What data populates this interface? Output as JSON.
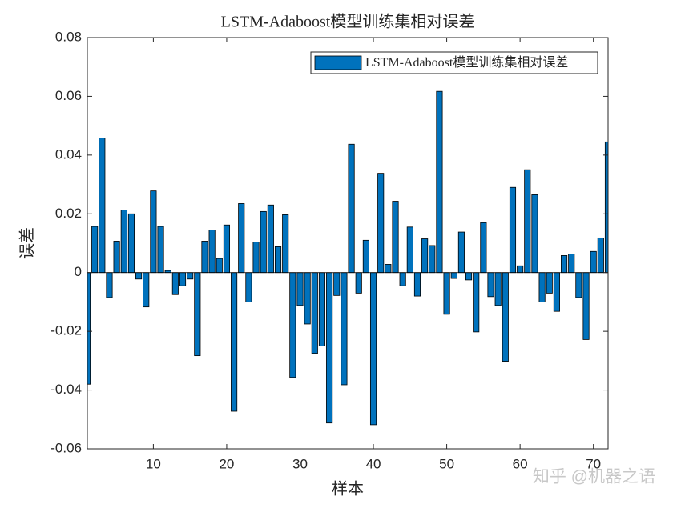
{
  "chart_data": {
    "type": "bar",
    "title": "LSTM-Adaboost模型训练集相对误差",
    "x_label": "样本",
    "y_label": "误差",
    "x": [
      1,
      2,
      3,
      4,
      5,
      6,
      7,
      8,
      9,
      10,
      11,
      12,
      13,
      14,
      15,
      16,
      17,
      18,
      19,
      20,
      21,
      22,
      23,
      24,
      25,
      26,
      27,
      28,
      29,
      30,
      31,
      32,
      33,
      34,
      35,
      36,
      37,
      38,
      39,
      40,
      41,
      42,
      43,
      44,
      45,
      46,
      47,
      48,
      49,
      50,
      51,
      52,
      53,
      54,
      55,
      56,
      57,
      58,
      59,
      60,
      61,
      62,
      63,
      64,
      65,
      66,
      67,
      68,
      69,
      70,
      71,
      72
    ],
    "series": [
      {
        "name": "LSTM-Adaboost模型训练集相对误差",
        "color": "#0072bd",
        "values": [
          -0.038,
          0.0157,
          0.0458,
          -0.0085,
          0.0107,
          0.0213,
          0.02,
          -0.0022,
          -0.0117,
          0.0278,
          0.0157,
          0.0007,
          -0.0075,
          -0.0045,
          -0.0022,
          -0.0283,
          0.0107,
          0.0145,
          0.0048,
          0.0162,
          -0.0472,
          0.0235,
          -0.01,
          0.0104,
          0.0208,
          0.023,
          0.0088,
          0.0197,
          -0.0357,
          -0.0112,
          -0.0175,
          -0.0275,
          -0.025,
          -0.0512,
          -0.0078,
          -0.0382,
          0.0437,
          -0.007,
          0.011,
          -0.0518,
          0.0338,
          0.0028,
          0.0243,
          -0.0045,
          0.0155,
          -0.008,
          0.0115,
          0.0092,
          0.0617,
          -0.0142,
          -0.002,
          0.0138,
          -0.0025,
          -0.0202,
          0.017,
          -0.0082,
          -0.0112,
          -0.0302,
          0.029,
          0.0023,
          0.035,
          0.0265,
          -0.01,
          -0.007,
          -0.0132,
          0.0058,
          0.0063,
          -0.0085,
          -0.0228,
          0.0072,
          0.0118,
          0.0445
        ]
      }
    ],
    "xlim": [
      1,
      72
    ],
    "xticks": [
      10,
      20,
      30,
      40,
      50,
      60,
      70
    ],
    "ylim": [
      -0.06,
      0.08
    ],
    "yticks": [
      -0.06,
      -0.04,
      -0.02,
      0,
      0.02,
      0.04,
      0.06,
      0.08
    ],
    "legend_position": "top-right",
    "watermark": "知乎 @机器之语"
  }
}
